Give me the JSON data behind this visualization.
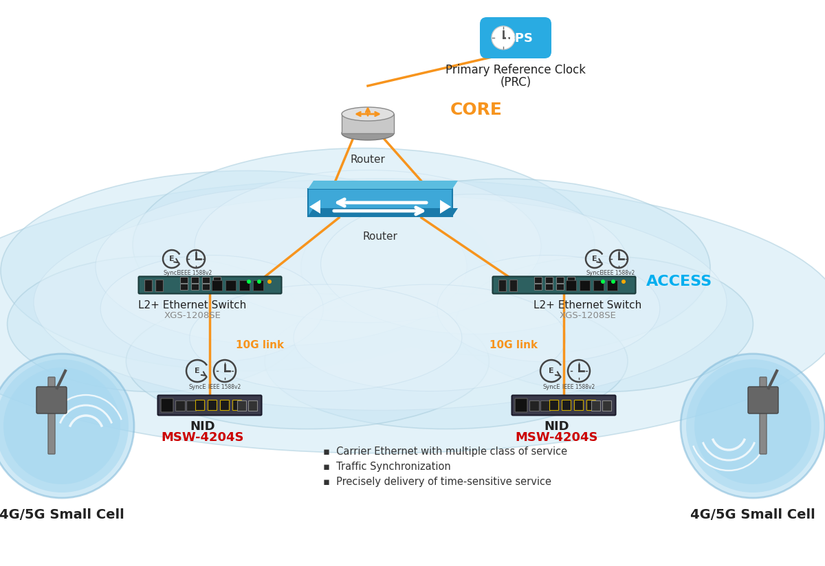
{
  "bg_color": "#ffffff",
  "cloud_color": "#cde8f5",
  "cloud_edge": "#a8ccdc",
  "cloud_color2": "#ddeef8",
  "orange_color": "#f7941d",
  "access_color": "#00aeef",
  "core_color": "#f7941d",
  "router_label": "Router",
  "core_label": "CORE",
  "access_label": "ACCESS",
  "switch_label": "L2+ Ethernet Switch",
  "switch_model": "XGS-1208SE",
  "nid_label": "NID",
  "nid_model": "MSW-4204S",
  "nid_model_color": "#cc0000",
  "link_label": "10G link",
  "cell_label": "4G/5G Small Cell",
  "gps_label1": "Primary Reference Clock",
  "gps_label2": "(PRC)",
  "bullet_points": [
    "Carrier Ethernet with multiple class of service",
    "Traffic Synchronization",
    "Precisely delivery of time-sensitive service"
  ],
  "gps_circle_color": "#29abe2",
  "gps_pill_color": "#29abe2",
  "switch_face_color": "#2d6060",
  "nid_face_color": "#3a3a4a",
  "router_gray": "#b0b0b0",
  "router_gray2": "#d0d0d0",
  "blue_switch_color": "#3ea8d8",
  "blue_switch_dark": "#1a7aaa"
}
